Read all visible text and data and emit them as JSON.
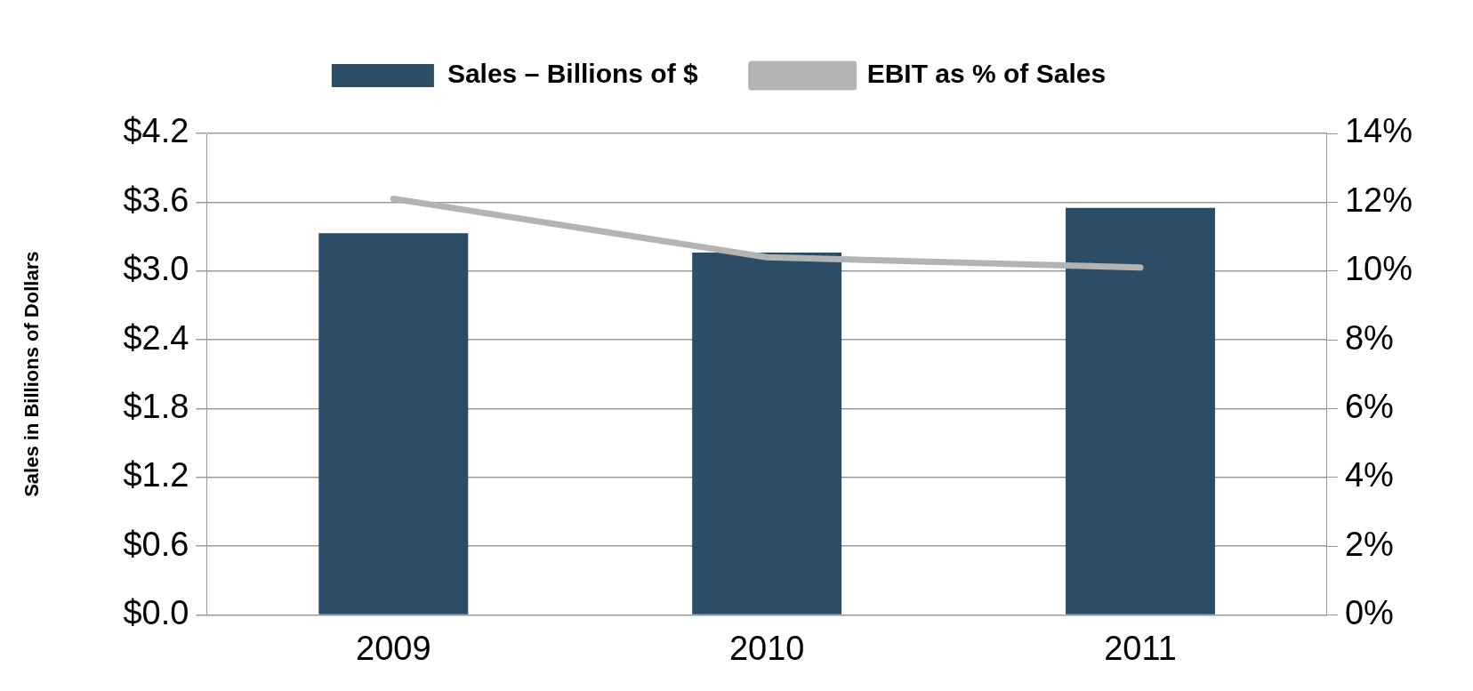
{
  "chart_data": {
    "type": "bar",
    "ylabel": "Sales in Billions of Dollars",
    "categories": [
      "2009",
      "2010",
      "2011"
    ],
    "series": [
      {
        "name": "Sales – Billions of $",
        "color": "#2c4d66",
        "values": [
          3.33,
          3.16,
          3.55
        ]
      },
      {
        "name": "EBIT as % of Sales",
        "type": "line",
        "axis": "y2",
        "color": "#b3b3b3",
        "values": [
          12.1,
          10.4,
          10.1
        ]
      }
    ],
    "ylim": [
      0,
      4.2
    ],
    "yticks": [
      {
        "value": 0,
        "label": "$0.0"
      },
      {
        "value": 0.6,
        "label": "$0.6"
      },
      {
        "value": 1.2,
        "label": "$1.2"
      },
      {
        "value": 1.8,
        "label": "$1.8"
      },
      {
        "value": 2.4,
        "label": "$2.4"
      },
      {
        "value": 3.0,
        "label": "$3.0"
      },
      {
        "value": 3.6,
        "label": "$3.6"
      },
      {
        "value": 4.2,
        "label": "$4.2"
      }
    ],
    "y2lim": [
      0,
      14
    ],
    "y2ticks": [
      {
        "value": 0,
        "label": "0%"
      },
      {
        "value": 2,
        "label": "2%"
      },
      {
        "value": 4,
        "label": "4%"
      },
      {
        "value": 6,
        "label": "6%"
      },
      {
        "value": 8,
        "label": "8%"
      },
      {
        "value": 10,
        "label": "10%"
      },
      {
        "value": 12,
        "label": "12%"
      },
      {
        "value": 14,
        "label": "14%"
      }
    ],
    "grid": "y",
    "legend": "top",
    "marker": "none"
  }
}
